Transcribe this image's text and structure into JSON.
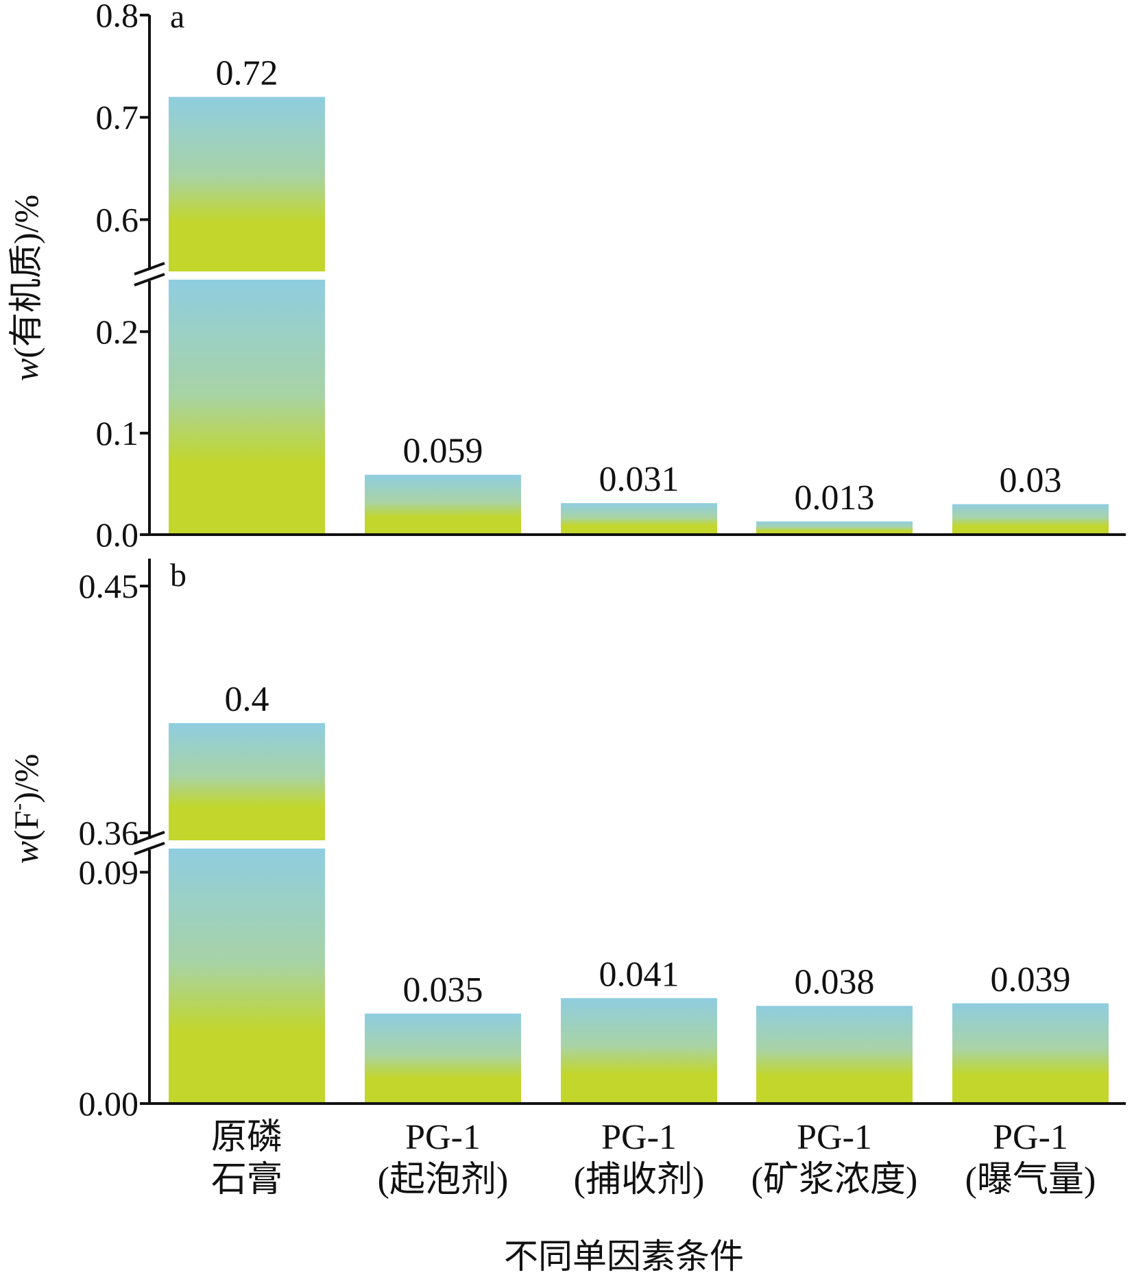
{
  "chart_data": [
    {
      "type": "bar",
      "panel": "a",
      "ylabel_var": "w",
      "ylabel_rest": "(有机质)/%",
      "y_broken": true,
      "ylim_lower": [
        0,
        0.26
      ],
      "ylim_upper": [
        0.55,
        0.8
      ],
      "yticks_lower": [
        "0.0",
        "0.1",
        "0.2"
      ],
      "yticks_upper": [
        "0.6",
        "0.7",
        "0.8"
      ],
      "values": [
        0.72,
        0.059,
        0.031,
        0.013,
        0.03
      ],
      "value_labels": [
        "0.72",
        "0.059",
        "0.031",
        "0.013",
        "0.03"
      ]
    },
    {
      "type": "bar",
      "panel": "b",
      "ylabel_var": "w",
      "ylabel_rest": "(F",
      "ylabel_sup": "-",
      "ylabel_end": ")/%",
      "y_broken": true,
      "ylim_lower": [
        0,
        0.1
      ],
      "ylim_upper": [
        0.355,
        0.45
      ],
      "yticks_lower": [
        "0.00",
        "0.09"
      ],
      "yticks_upper": [
        "0.36",
        "0.45"
      ],
      "values": [
        0.4,
        0.035,
        0.041,
        0.038,
        0.039
      ],
      "value_labels": [
        "0.4",
        "0.035",
        "0.041",
        "0.038",
        "0.039"
      ]
    }
  ],
  "categories": [
    {
      "line1": "原磷",
      "line2": "石膏"
    },
    {
      "line1": "PG-1",
      "line2": "(起泡剂)"
    },
    {
      "line1": "PG-1",
      "line2": "(捕收剂)"
    },
    {
      "line1": "PG-1",
      "line2": "(矿浆浓度)"
    },
    {
      "line1": "PG-1",
      "line2": "(曝气量)"
    }
  ],
  "xlabel": "不同单因素条件",
  "colors": {
    "bar_top": "#8fcde0",
    "bar_bottom": "#c2d62b",
    "axis": "#111111"
  }
}
